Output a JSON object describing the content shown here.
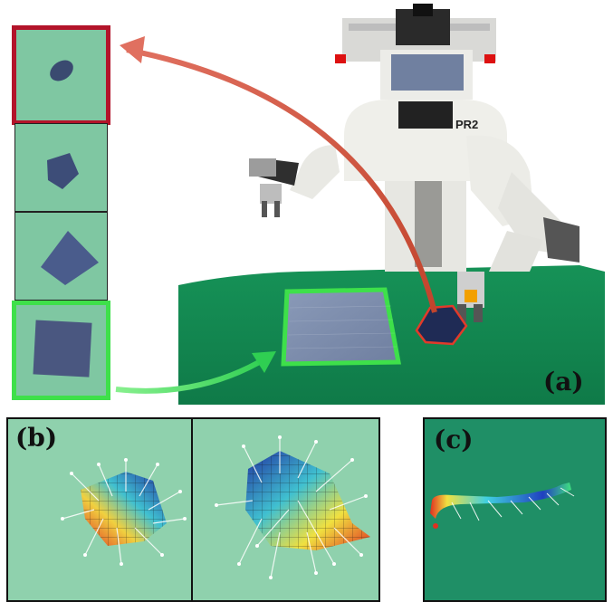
{
  "labels": {
    "a": "(a)",
    "b": "(b)",
    "c": "(c)",
    "robot_badge": "PR2"
  },
  "colors": {
    "table_green": "#1a8b5a",
    "thumb_green": "#7fc7a2",
    "highlight_red": "#b3142a",
    "highlight_green": "#3ee04a",
    "arrow_red": "#d4543a",
    "arrow_green": "#3fd45a"
  }
}
